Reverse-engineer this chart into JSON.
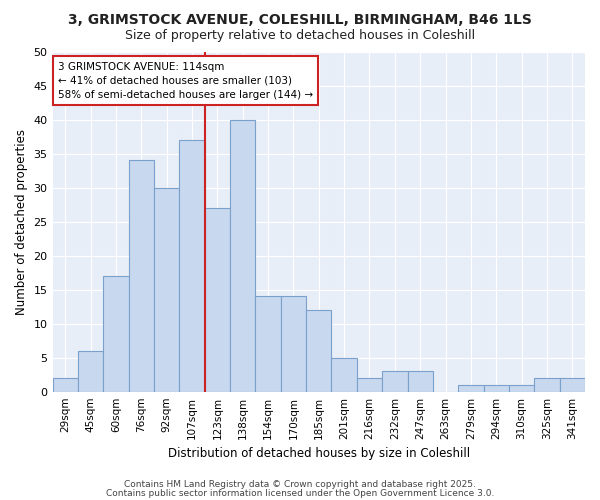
{
  "title": "3, GRIMSTOCK AVENUE, COLESHILL, BIRMINGHAM, B46 1LS",
  "subtitle": "Size of property relative to detached houses in Coleshill",
  "xlabel": "Distribution of detached houses by size in Coleshill",
  "ylabel": "Number of detached properties",
  "categories": [
    "29sqm",
    "45sqm",
    "60sqm",
    "76sqm",
    "92sqm",
    "107sqm",
    "123sqm",
    "138sqm",
    "154sqm",
    "170sqm",
    "185sqm",
    "201sqm",
    "216sqm",
    "232sqm",
    "247sqm",
    "263sqm",
    "279sqm",
    "294sqm",
    "310sqm",
    "325sqm",
    "341sqm"
  ],
  "values": [
    2,
    6,
    17,
    34,
    30,
    37,
    27,
    40,
    14,
    14,
    12,
    5,
    2,
    3,
    3,
    0,
    1,
    1,
    1,
    2,
    2
  ],
  "bar_color": "#c8d8ee",
  "bar_edge_color": "#7aa0cc",
  "red_line_after_index": 5,
  "highlight_color": "#cc2222",
  "annotation_text": "3 GRIMSTOCK AVENUE: 114sqm\n← 41% of detached houses are smaller (103)\n58% of semi-detached houses are larger (144) →",
  "annotation_box_color": "#ffffff",
  "annotation_box_edge_color": "#cc2222",
  "ylim": [
    0,
    50
  ],
  "yticks": [
    0,
    5,
    10,
    15,
    20,
    25,
    30,
    35,
    40,
    45,
    50
  ],
  "fig_background_color": "#ffffff",
  "plot_background_color": "#e8eef8",
  "grid_color": "#ffffff",
  "footer_line1": "Contains HM Land Registry data © Crown copyright and database right 2025.",
  "footer_line2": "Contains public sector information licensed under the Open Government Licence 3.0."
}
